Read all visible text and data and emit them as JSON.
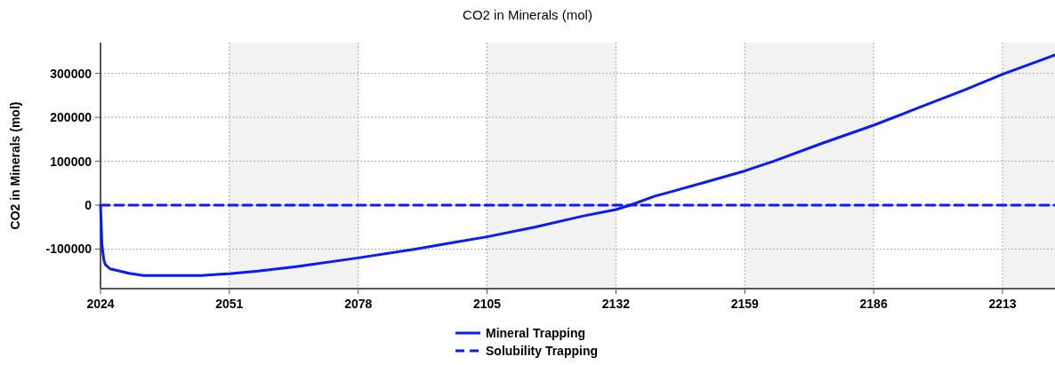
{
  "chart_data": {
    "type": "line",
    "title": "CO2 in Minerals (mol)",
    "ylabel": "CO2 in Minerals (mol)",
    "xlim": [
      2024,
      2224
    ],
    "xticks": [
      2024,
      2051,
      2078,
      2105,
      2132,
      2159,
      2186,
      2213
    ],
    "ylim": [
      -190000,
      370000
    ],
    "yticks": [
      -100000,
      0,
      100000,
      200000,
      300000
    ],
    "grid": true,
    "legend": "bottom",
    "bands": [
      {
        "axis": "x",
        "from": 2051,
        "to": 2078,
        "color": "#f2f2f2"
      },
      {
        "axis": "x",
        "from": 2105,
        "to": 2132,
        "color": "#f2f2f2"
      },
      {
        "axis": "x",
        "from": 2159,
        "to": 2186,
        "color": "#f2f2f2"
      },
      {
        "axis": "x",
        "from": 2213,
        "to": 2224,
        "color": "#f2f2f2"
      }
    ],
    "series": [
      {
        "name": "Mineral Trapping",
        "color": "#0a1aff",
        "line_style": "solid",
        "x": [
          2024,
          2024.3,
          2024.7,
          2025,
          2026,
          2028,
          2030,
          2033,
          2040,
          2045,
          2051,
          2057,
          2065,
          2078,
          2090,
          2098,
          2105,
          2115,
          2125,
          2132,
          2135,
          2140,
          2150,
          2159,
          2165,
          2175,
          2186,
          2195,
          2205,
          2213,
          2224
        ],
        "values": [
          0,
          -90000,
          -125000,
          -135000,
          -145000,
          -150000,
          -155000,
          -160000,
          -160000,
          -160000,
          -156000,
          -150000,
          -140000,
          -120000,
          -100000,
          -85000,
          -72000,
          -50000,
          -25000,
          -10000,
          0,
          20000,
          50000,
          78000,
          100000,
          140000,
          182000,
          220000,
          262000,
          298000,
          342000
        ]
      },
      {
        "name": "Solubility Trapping",
        "color": "#0a1aff",
        "line_style": "dashed",
        "x": [
          2024,
          2224
        ],
        "values": [
          0,
          0
        ]
      }
    ]
  }
}
